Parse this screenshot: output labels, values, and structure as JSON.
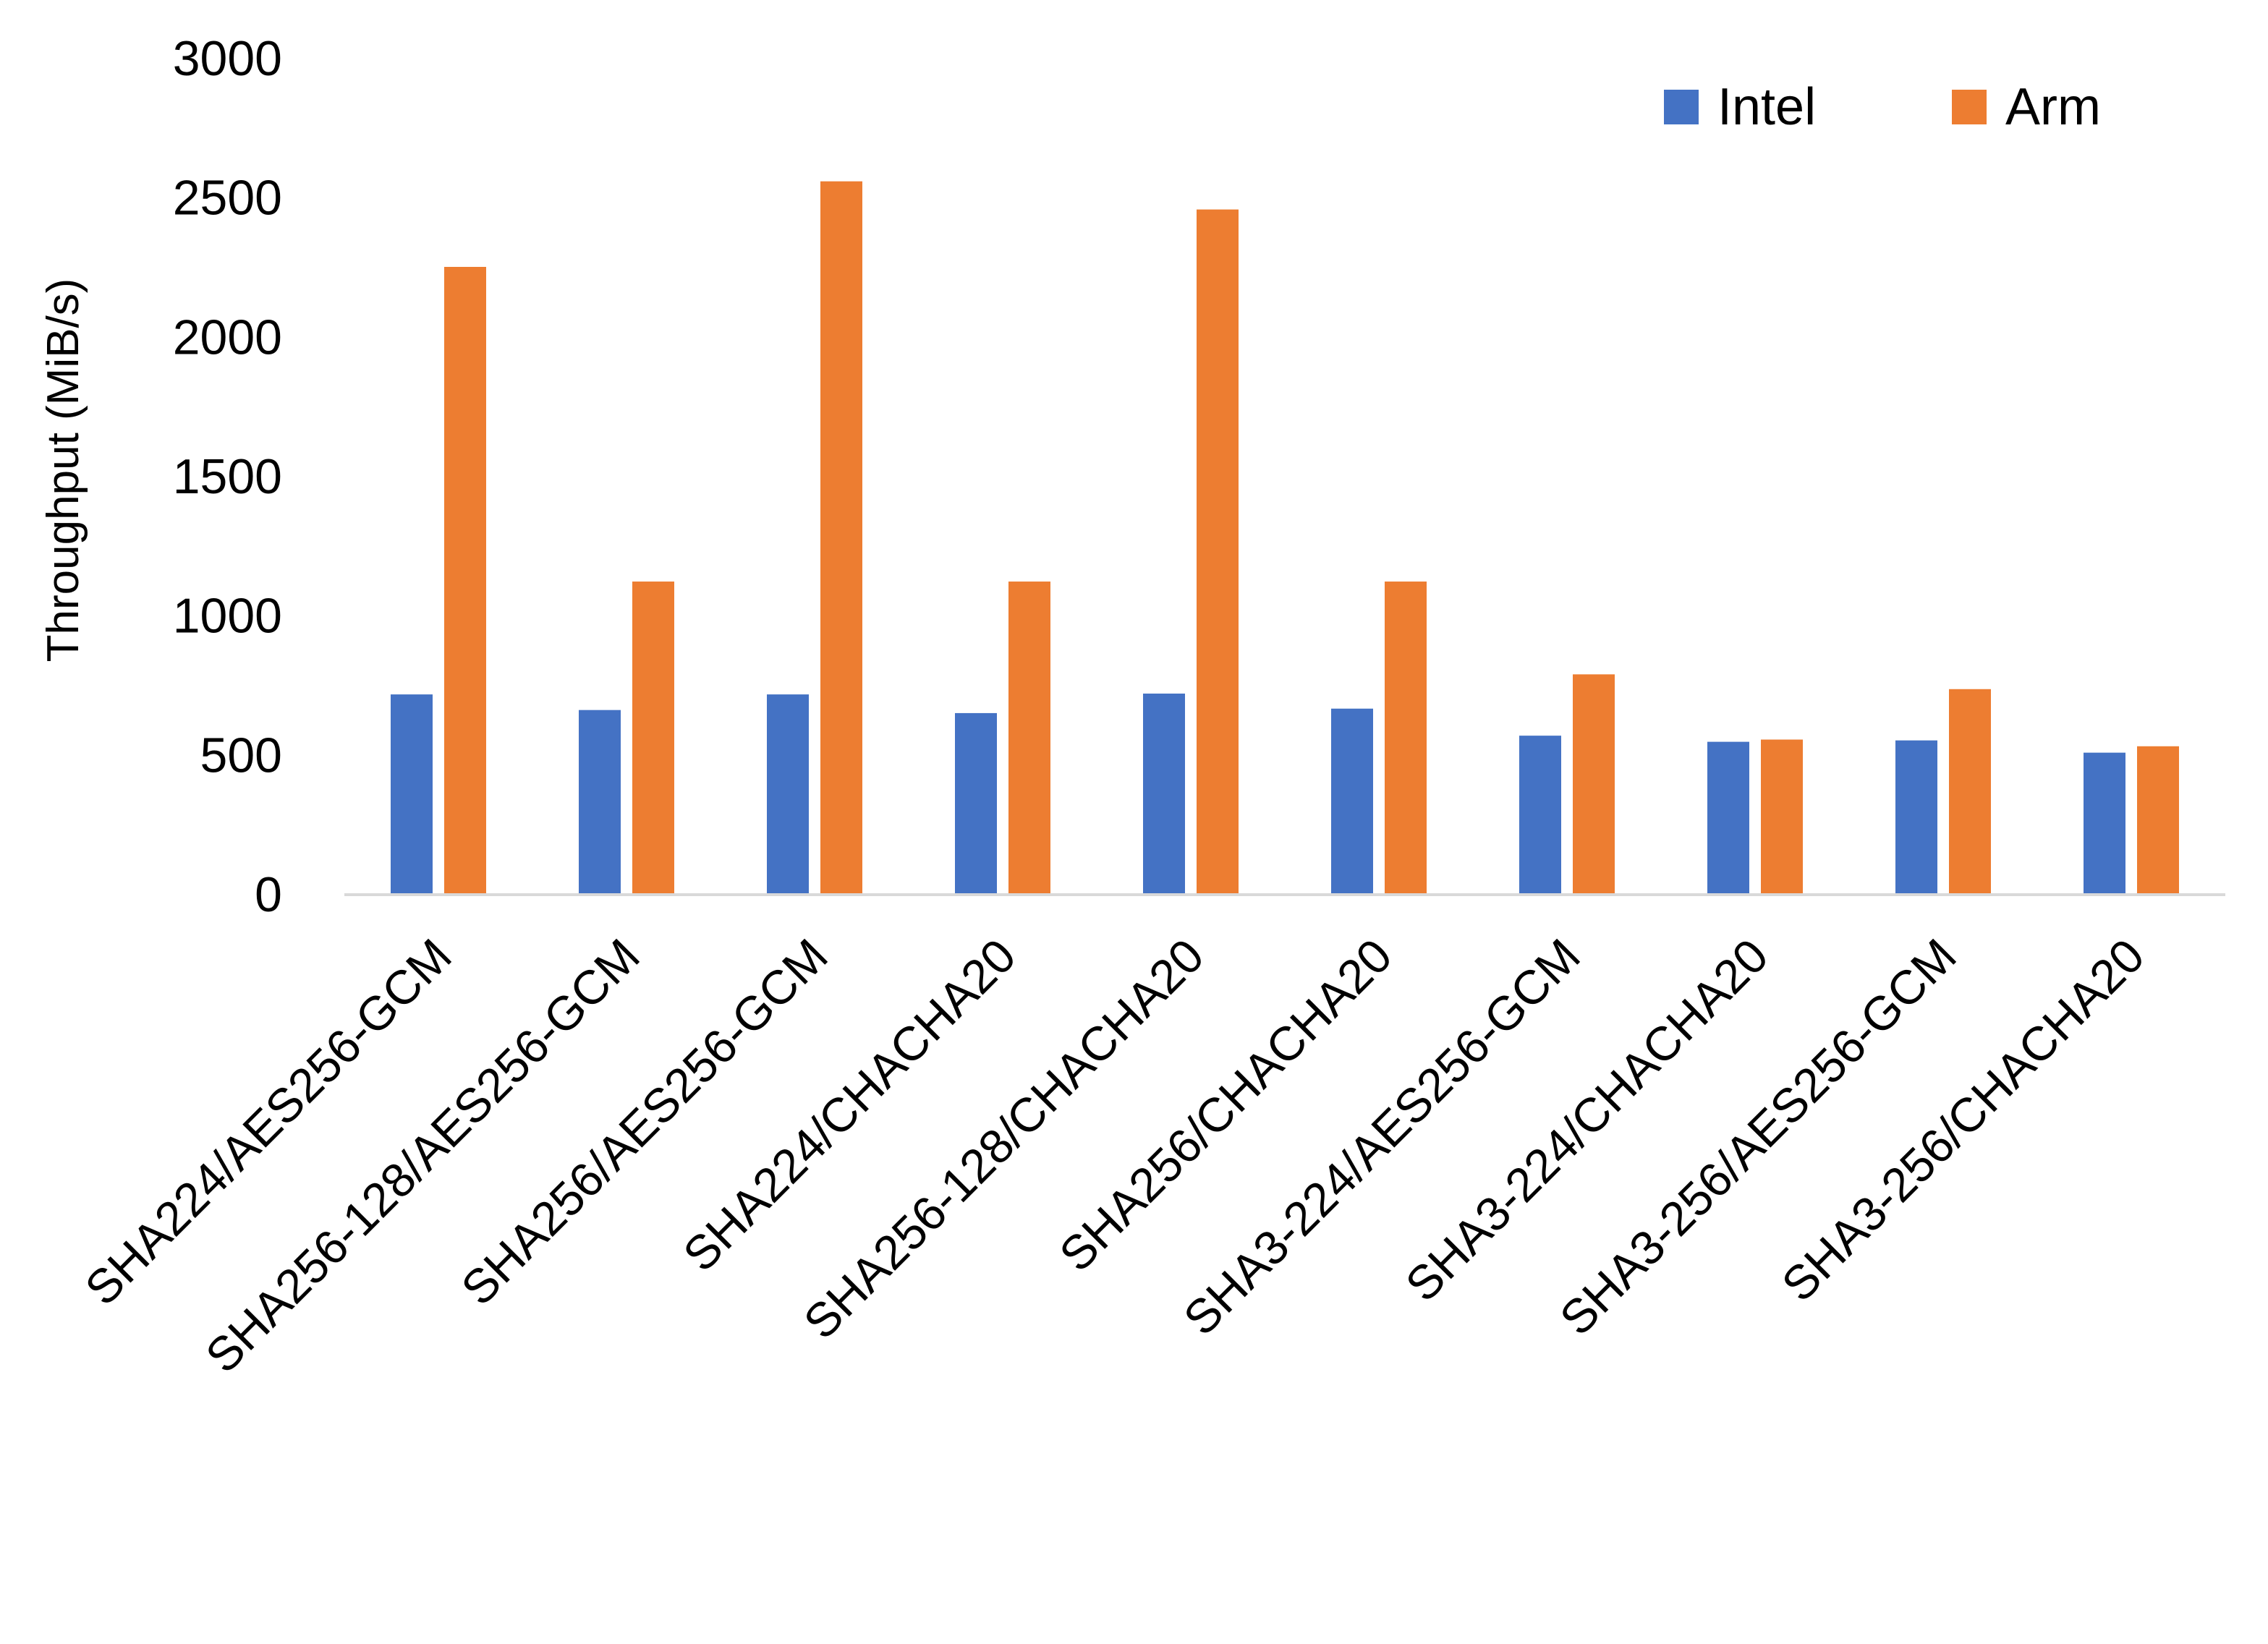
{
  "chart_data": {
    "type": "bar",
    "title": "",
    "xlabel": "",
    "ylabel": "Throughput (MiB/s)",
    "ylim": [
      0,
      3000
    ],
    "yticks": [
      "0",
      "500",
      "1000",
      "1500",
      "2000",
      "2500",
      "3000"
    ],
    "grid": false,
    "legend_position": "top-right",
    "categories": [
      "SHA224/AES256-GCM",
      "SHA256-128/AES256-GCM",
      "SHA256/AES256-GCM",
      "SHA224/CHACHA20",
      "SHA256-128/CHACHA20",
      "SHA256/CHACHA20",
      "SHA3-224/AES256-GCM",
      "SHA3-224/CHACHA20",
      "SHA3-256/AES256-GCM",
      "SHA3-256/CHACHA20"
    ],
    "series": [
      {
        "name": "Intel",
        "color": "#4472C4",
        "values": [
          716,
          660,
          716,
          649,
          719,
          665,
          568,
          546,
          551,
          507
        ]
      },
      {
        "name": "Arm",
        "color": "#ED7D31",
        "values": [
          2250,
          1121,
          2557,
          1121,
          2456,
          1121,
          788,
          554,
          735,
          530
        ]
      }
    ]
  }
}
